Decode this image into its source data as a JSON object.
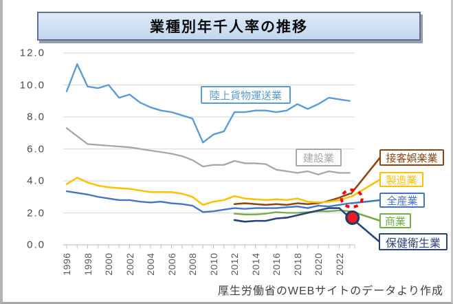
{
  "title": "業種別年千人率の推移",
  "footer": {
    "underscore": "_",
    "credit": "厚生労働省のWEBサイトのデータより作成"
  },
  "chart_data": {
    "type": "line",
    "title": "業種別年千人率の推移",
    "xlabel": "",
    "ylabel": "",
    "ylim": [
      0,
      12
    ],
    "x_start": 1996,
    "x_end": 2023,
    "grid": "horizontal",
    "legend_position": "right-callout-boxes",
    "y_ticks": [
      12,
      10,
      8,
      6,
      4,
      2,
      0
    ],
    "y_tick_labels": [
      "12.0",
      "10.0",
      "8.0",
      "6.0",
      "4.0",
      "2.0",
      "0.0"
    ],
    "x_tick_labels": [
      "1996",
      "1998",
      "2000",
      "2002",
      "2004",
      "2006",
      "2008",
      "2010",
      "2012",
      "2014",
      "2016",
      "2018",
      "2020",
      "2022"
    ],
    "series": [
      {
        "id": "land-freight-transport",
        "name": "陸上貨物運送業",
        "color": "#5B9BD5",
        "start_year": 1996,
        "values": [
          9.6,
          11.3,
          9.9,
          9.8,
          10.0,
          9.2,
          9.4,
          8.9,
          8.6,
          8.4,
          8.3,
          8.1,
          7.9,
          6.4,
          6.9,
          7.1,
          8.3,
          8.3,
          8.4,
          8.4,
          8.3,
          8.4,
          8.8,
          8.5,
          8.8,
          9.2,
          9.1,
          9.0
        ]
      },
      {
        "id": "construction",
        "name": "建設業",
        "color": "#A6A6A6",
        "start_year": 1996,
        "values": [
          7.3,
          6.8,
          6.3,
          6.25,
          6.2,
          6.15,
          6.1,
          6.0,
          5.9,
          5.8,
          5.7,
          5.55,
          5.3,
          4.9,
          5.0,
          5.0,
          5.25,
          5.1,
          5.1,
          5.05,
          4.7,
          4.6,
          4.5,
          4.6,
          4.4,
          4.6,
          4.5,
          4.5
        ]
      },
      {
        "id": "hospitality-entertainment",
        "name": "接客娯楽業",
        "color": "#8B4513",
        "start_year": 2012,
        "values": [
          2.55,
          2.6,
          2.55,
          2.5,
          2.55,
          2.5,
          2.6,
          2.55,
          2.6,
          2.75,
          2.95,
          3.2
        ]
      },
      {
        "id": "manufacturing",
        "name": "製造業",
        "color": "#FFC000",
        "start_year": 1996,
        "values": [
          3.8,
          4.2,
          3.9,
          3.7,
          3.6,
          3.55,
          3.5,
          3.4,
          3.3,
          3.3,
          3.3,
          3.2,
          3.0,
          2.5,
          2.7,
          2.8,
          3.05,
          2.9,
          2.85,
          2.8,
          2.85,
          2.8,
          2.9,
          2.7,
          2.65,
          2.7,
          2.8,
          3.0
        ]
      },
      {
        "id": "all-industries",
        "name": "全産業",
        "color": "#4472C4",
        "start_year": 1996,
        "values": [
          3.35,
          3.25,
          3.15,
          3.0,
          2.9,
          2.8,
          2.8,
          2.7,
          2.65,
          2.7,
          2.6,
          2.55,
          2.45,
          2.05,
          2.1,
          2.2,
          2.3,
          2.25,
          2.3,
          2.3,
          2.3,
          2.35,
          2.4,
          2.3,
          2.45,
          2.4,
          2.5,
          2.6
        ]
      },
      {
        "id": "commerce",
        "name": "商業",
        "color": "#70AD47",
        "start_year": 2012,
        "values": [
          1.95,
          1.9,
          1.9,
          1.95,
          2.05,
          2.0,
          2.0,
          2.05,
          2.1,
          2.1,
          2.15,
          2.1
        ]
      },
      {
        "id": "health-hygiene",
        "name": "保健衛生業",
        "color": "#264478",
        "start_year": 2012,
        "values": [
          1.55,
          1.45,
          1.5,
          1.5,
          1.65,
          1.7,
          1.85,
          2.0,
          2.15,
          2.3,
          2.3,
          1.7
        ]
      }
    ],
    "annotations": [
      {
        "id": "highlight-dashed-circle",
        "shape": "dashed-ellipse",
        "color": "#FF0000",
        "at_year": 2023,
        "at_value": 2.9,
        "note": "endpoint cluster of 接客娯楽業 / 製造業 / 全産業"
      },
      {
        "id": "highlight-dot",
        "shape": "filled-circle",
        "fill": "#EC1C24",
        "stroke": "#1F3864",
        "at_year": 2023,
        "at_value": 1.7,
        "note": "endpoint of 保健衛生業"
      }
    ]
  }
}
